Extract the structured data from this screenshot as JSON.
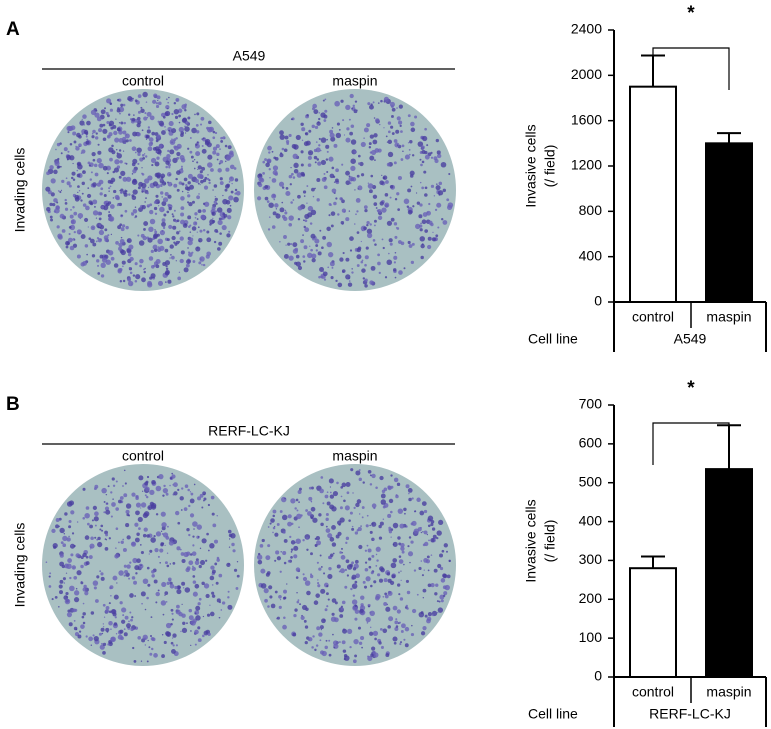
{
  "chart_data": [
    {
      "type": "bar",
      "panel": "A",
      "image_title": "A549",
      "image_labels": [
        "control",
        "maspin"
      ],
      "row_label": "Invading cells",
      "categories": [
        "control",
        "maspin"
      ],
      "values": [
        1900,
        1400
      ],
      "errors": [
        275,
        90
      ],
      "colors": [
        "#ffffff",
        "#000000"
      ],
      "ylabel": [
        "Invasive cells",
        "(/ field)"
      ],
      "ylim": [
        0,
        2400
      ],
      "yticks": [
        0,
        400,
        800,
        1200,
        1600,
        2000,
        2400
      ],
      "significance": "*",
      "group_axis_label": "Cell line",
      "group_label": "A549"
    },
    {
      "type": "bar",
      "panel": "B",
      "image_title": "RERF-LC-KJ",
      "image_labels": [
        "control",
        "maspin"
      ],
      "row_label": "Invading cells",
      "categories": [
        "control",
        "maspin"
      ],
      "values": [
        280,
        535
      ],
      "errors": [
        30,
        113
      ],
      "colors": [
        "#ffffff",
        "#000000"
      ],
      "ylabel": [
        "Invasive cells",
        "(/ field)"
      ],
      "ylim": [
        0,
        700
      ],
      "yticks": [
        0,
        100,
        200,
        300,
        400,
        500,
        600,
        700
      ],
      "significance": "*",
      "group_axis_label": "Cell line",
      "group_label": "RERF-LC-KJ"
    }
  ]
}
